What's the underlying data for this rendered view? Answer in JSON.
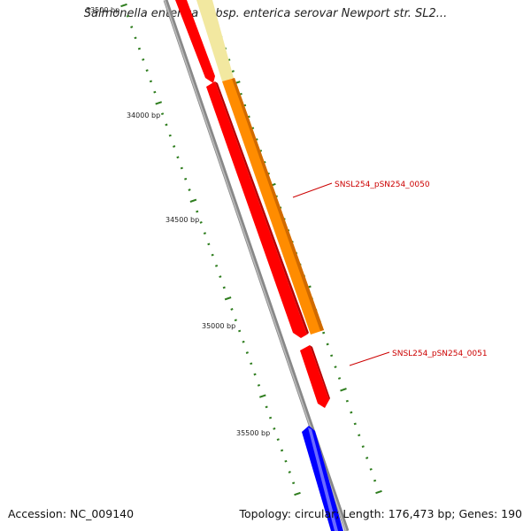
{
  "title": "Salmonella enterica subsp. enterica serovar Newport str. SL2...",
  "footer": {
    "accession": "Accession: NC_009140",
    "summary": "Topology: circular; Length: 176,473 bp; Genes: 190"
  },
  "tick_labels": [
    "33500 bp",
    "34000 bp",
    "34500 bp",
    "35000 bp",
    "35500 bp"
  ],
  "gene_labels": [
    "SNSL254_pSN254_0050",
    "SNSL254_pSN254_0051"
  ],
  "colors": {
    "backbone": "#8c8c8c",
    "red_feature": "#ff0000",
    "orange_feature": "#ff8c00",
    "yellow_feature": "#f2e8a0",
    "blue_feature": "#0000ff",
    "tick": "#2e7d1e",
    "gene_label": "#cc0000"
  }
}
